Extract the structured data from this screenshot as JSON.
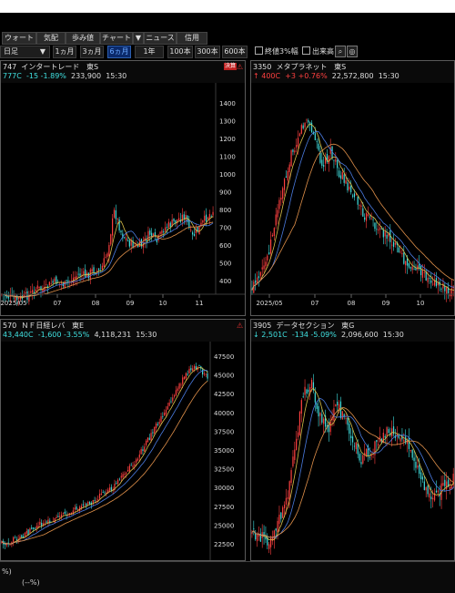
{
  "tabs": [
    "ウォート",
    "気配",
    "歩み値",
    "チャート",
    "▼",
    "ニュース",
    "信用"
  ],
  "controls": {
    "period": "日足",
    "dropdown_arrow": "▼",
    "ranges": [
      "1ヵ月",
      "3ヵ月",
      "6ヵ月",
      "1年",
      "100本",
      "300本",
      "600本"
    ],
    "selected_range": "6ヵ月",
    "checkbox1": "終値3%幅",
    "checkbox2": "出来高"
  },
  "panels": [
    {
      "code": "747",
      "name": "インタートレード",
      "market": "東S",
      "price": "777",
      "change": "-15",
      "change_pct": "-1.89%",
      "volume": "233,900",
      "time": "15:30",
      "tag": "決算",
      "y_ticks": [
        "1400",
        "1300",
        "1200",
        "1100",
        "1000",
        "900",
        "800",
        "700",
        "600",
        "500",
        "400"
      ],
      "x_ticks": [
        "2025/05",
        "07",
        "08",
        "09",
        "10",
        "11"
      ]
    },
    {
      "code": "3350",
      "name": "メタプラネット",
      "market": "東S",
      "price": "400",
      "change": "+3",
      "change_pct": "+0.76%",
      "volume": "22,572,800",
      "time": "15:30",
      "x_ticks": [
        "2025/05",
        "07",
        "08",
        "09",
        "10"
      ]
    },
    {
      "code": "570",
      "name": "ＮＦ日経レバ",
      "market": "東E",
      "price": "43,440",
      "change": "-1,600",
      "change_pct": "-3.55%",
      "volume": "4,118,231",
      "time": "15:30",
      "y_ticks": [
        "47500",
        "45000",
        "42500",
        "40000",
        "37500",
        "35000",
        "32500",
        "30000",
        "27500",
        "25000",
        "22500"
      ]
    },
    {
      "code": "3905",
      "name": "データセクション",
      "market": "東G",
      "price": "2,501",
      "change": "-134",
      "change_pct": "-5.09%",
      "volume": "2,096,600",
      "time": "15:30"
    }
  ],
  "bottom": {
    "line1": "%)",
    "line2": "(--%)"
  },
  "colors": {
    "up": "#ff4040",
    "down": "#40e0e0",
    "selected": "#6aa8ff"
  }
}
